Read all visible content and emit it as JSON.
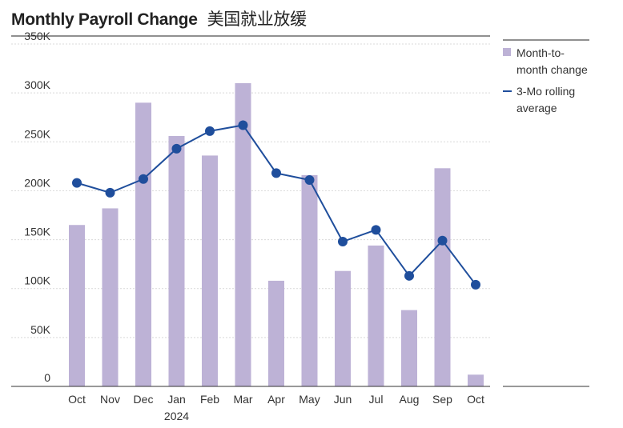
{
  "title": "Monthly Payroll Change",
  "subtitle": "美国就业放缓",
  "colors": {
    "bar": "#bdb2d6",
    "line": "#1f4e9c",
    "grid": "#d9d9d9",
    "axis": "#333333"
  },
  "legend": {
    "bar_label_line1": "Month-to-",
    "bar_label_line2": "month change",
    "line_label_line1": "3-Mo rolling",
    "line_label_line2": "average"
  },
  "chart_data": {
    "type": "bar",
    "title": "Monthly Payroll Change",
    "categories": [
      "Oct",
      "Nov",
      "Dec",
      "Jan",
      "Feb",
      "Mar",
      "Apr",
      "May",
      "Jun",
      "Jul",
      "Aug",
      "Sep",
      "Oct"
    ],
    "year_label": "2024",
    "year_label_under": "Jan",
    "ylim": [
      0,
      350000
    ],
    "y_ticks": [
      0,
      50000,
      100000,
      150000,
      200000,
      250000,
      300000,
      350000
    ],
    "y_tick_labels": [
      "0",
      "50K",
      "100K",
      "150K",
      "200K",
      "250K",
      "300K",
      "350K"
    ],
    "grid": true,
    "legend_position": "right",
    "series": [
      {
        "name": "Month-to-month change",
        "type": "bar",
        "values": [
          165000,
          182000,
          290000,
          256000,
          236000,
          310000,
          108000,
          216000,
          118000,
          144000,
          78000,
          223000,
          12000
        ]
      },
      {
        "name": "3-Mo rolling average",
        "type": "line",
        "values": [
          208000,
          198000,
          212000,
          243000,
          261000,
          267000,
          218000,
          211000,
          148000,
          160000,
          113000,
          149000,
          104000
        ]
      }
    ]
  }
}
